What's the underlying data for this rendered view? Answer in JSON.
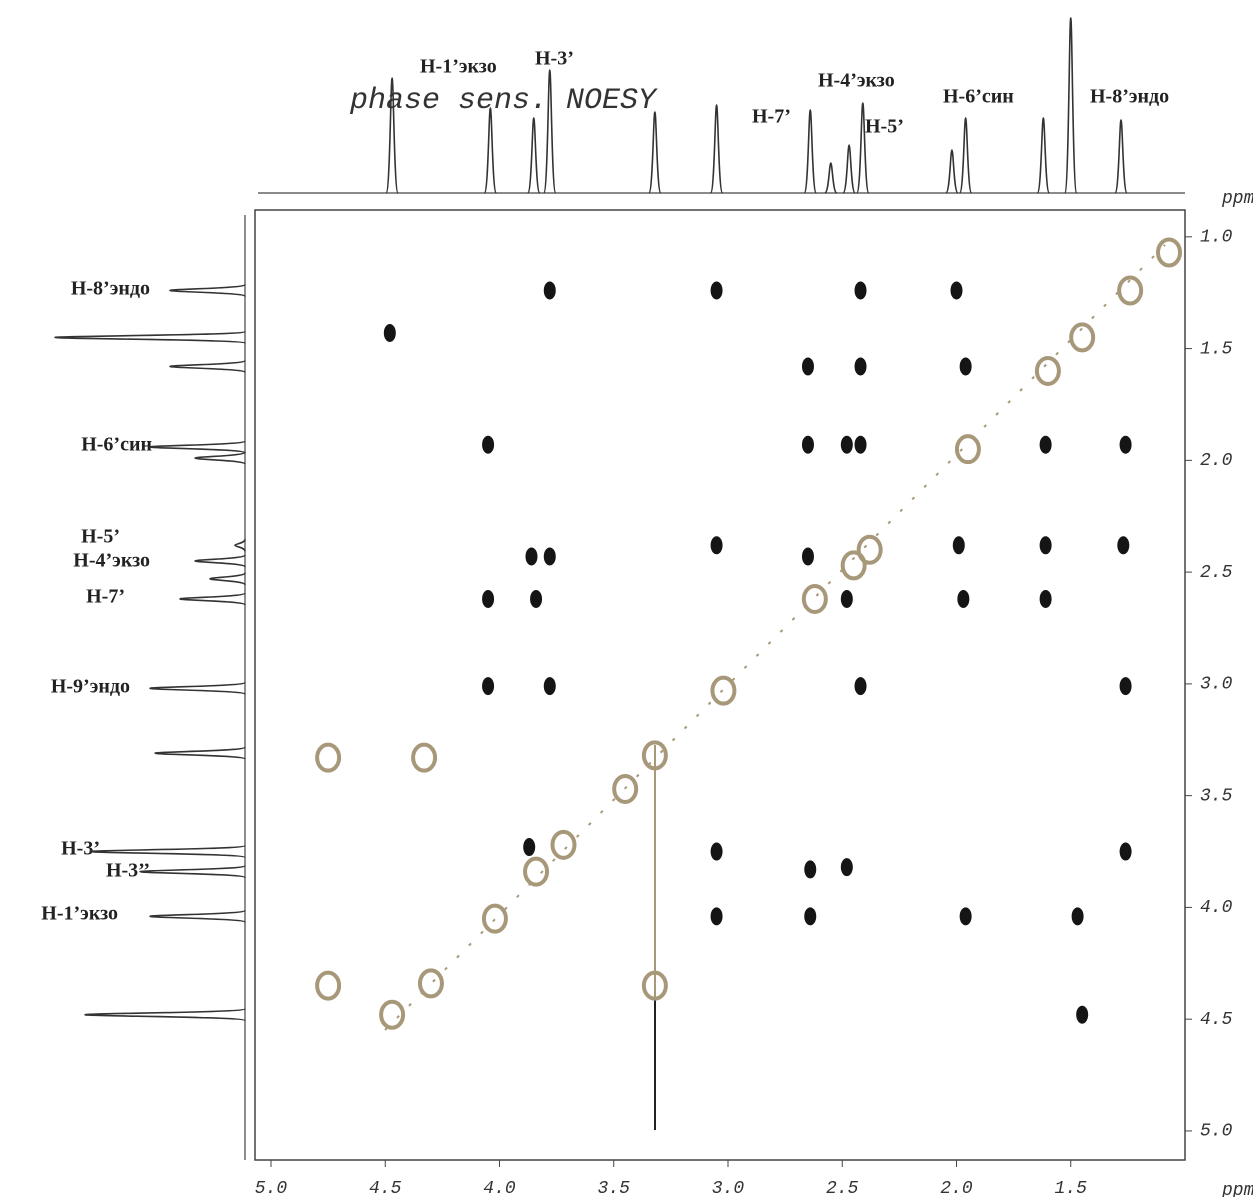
{
  "chart_data": {
    "type": "nmr-2d",
    "title": "phase sens. NOESY",
    "x_label": "ppm",
    "y_label": "ppm",
    "xlim": [
      5.07,
      1.0
    ],
    "ylim": [
      0.88,
      5.13
    ],
    "xticks": [
      {
        "value": 5,
        "label": "5.0"
      },
      {
        "value": 4.5,
        "label": "4.5"
      },
      {
        "value": 4,
        "label": "4.0"
      },
      {
        "value": 3.5,
        "label": "3.5"
      },
      {
        "value": 3,
        "label": "3.0"
      },
      {
        "value": 2.5,
        "label": "2.5"
      },
      {
        "value": 2,
        "label": "2.0"
      },
      {
        "value": 1.5,
        "label": "1.5"
      }
    ],
    "yticks": [
      {
        "value": 1,
        "label": "1.0"
      },
      {
        "value": 1.5,
        "label": "1.5"
      },
      {
        "value": 2,
        "label": "2.0"
      },
      {
        "value": 2.5,
        "label": "2.5"
      },
      {
        "value": 3,
        "label": "3.0"
      },
      {
        "value": 3.5,
        "label": "3.5"
      },
      {
        "value": 4,
        "label": "4.0"
      },
      {
        "value": 4.5,
        "label": "4.5"
      },
      {
        "value": 5,
        "label": "5.0"
      }
    ],
    "series": [
      {
        "color": "#151515",
        "x": [
          3.78,
          3.05,
          2.42,
          2.0,
          4.48,
          2.65,
          2.42,
          1.96,
          4.05,
          2.65,
          2.48,
          2.42,
          1.61,
          1.26,
          3.05,
          1.99,
          1.61,
          1.27,
          3.86,
          3.78,
          2.65,
          4.05,
          3.84,
          2.48,
          1.97,
          1.61,
          4.05,
          3.78,
          2.42,
          1.26,
          3.87,
          3.05,
          1.26,
          2.64,
          2.48,
          3.05,
          2.64,
          1.96,
          1.47,
          1.45
        ],
        "values": [
          1.24,
          1.24,
          1.24,
          1.24,
          1.43,
          1.58,
          1.58,
          1.58,
          1.93,
          1.93,
          1.93,
          1.93,
          1.93,
          1.93,
          2.38,
          2.38,
          2.38,
          2.38,
          2.43,
          2.43,
          2.43,
          2.62,
          2.62,
          2.62,
          2.62,
          2.62,
          3.01,
          3.01,
          3.01,
          3.01,
          3.73,
          3.75,
          3.75,
          3.83,
          3.82,
          4.04,
          4.04,
          4.04,
          4.04,
          4.48
        ]
      },
      {
        "color": "#a8987a",
        "x": [
          1.07,
          1.24,
          1.45,
          1.6,
          1.95,
          2.38,
          2.45,
          2.62,
          3.02,
          3.32,
          3.45,
          3.72,
          3.84,
          4.02,
          4.3,
          4.47,
          4.75,
          4.33,
          4.75,
          3.32
        ],
        "values": [
          1.07,
          1.24,
          1.45,
          1.6,
          1.95,
          2.4,
          2.47,
          2.62,
          3.03,
          3.32,
          3.47,
          3.72,
          3.84,
          4.05,
          4.34,
          4.48,
          3.33,
          3.33,
          4.35,
          4.35
        ]
      }
    ],
    "top_spectrum": {
      "color": "#333333",
      "x": [
        4.47,
        4.04,
        3.85,
        3.78,
        3.32,
        3.05,
        2.64,
        2.55,
        2.47,
        2.41,
        2.02,
        1.96,
        1.62,
        1.5,
        1.28
      ],
      "values": [
        115,
        85,
        75,
        123,
        81,
        88,
        83,
        30,
        48,
        90,
        43,
        75,
        75,
        175,
        73
      ]
    },
    "side_spectrum": {
      "color": "#333333",
      "x": [
        1.24,
        1.45,
        1.58,
        1.94,
        1.99,
        2.38,
        2.45,
        2.53,
        2.62,
        3.02,
        3.31,
        3.75,
        3.84,
        4.04,
        4.48
      ],
      "values": [
        75,
        190,
        75,
        95,
        50,
        10,
        50,
        35,
        65,
        95,
        90,
        155,
        105,
        95,
        160
      ]
    },
    "top_labels": [
      "H-1’экзо",
      "H-3’",
      "H-7’",
      "H-4’экзо",
      "H-5’",
      "H-6’син",
      "H-8’эндо"
    ],
    "side_labels": [
      "H-8’эндо",
      "H-6’син",
      "H-5’",
      "H-4’экзо",
      "H-7’",
      "H-9’эндо",
      "H-3’",
      "H-3’’",
      "H-1’экзо"
    ]
  }
}
